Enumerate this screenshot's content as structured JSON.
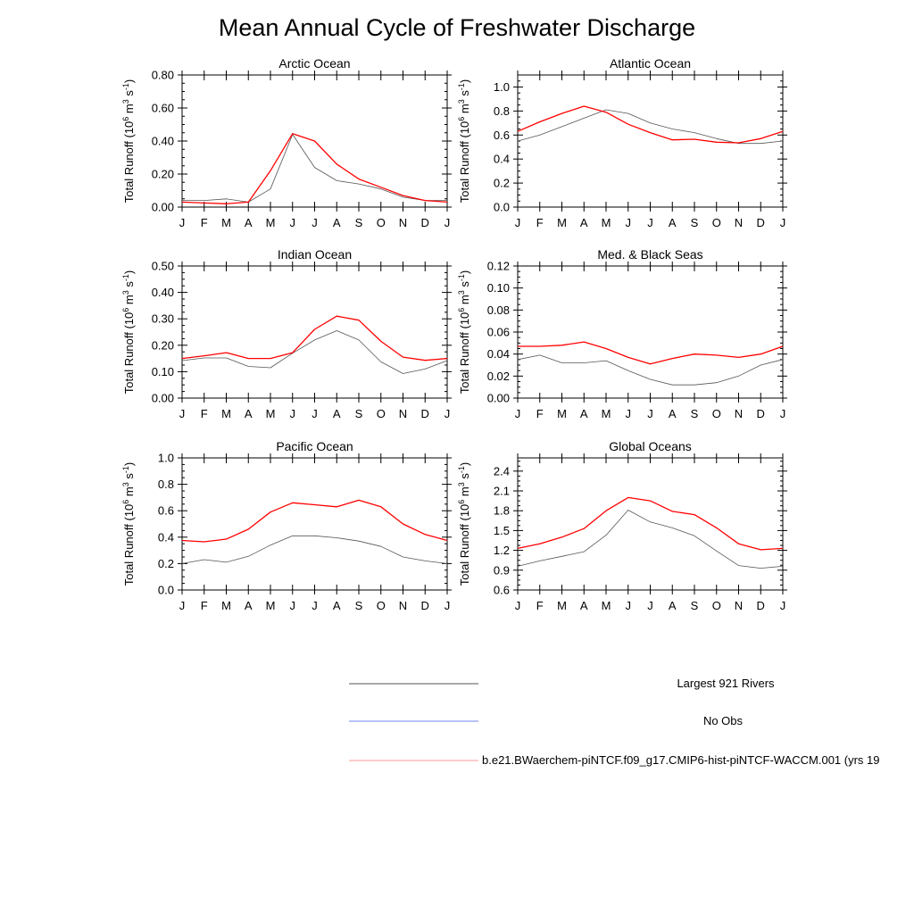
{
  "title": "Mean Annual Cycle of Freshwater Discharge",
  "colors": {
    "obs": "#555555",
    "noobs": "#6f86f0",
    "model": "#ff0000"
  },
  "legend": [
    {
      "label": "Largest 921 Rivers",
      "color": "#555555"
    },
    {
      "label": "No Obs",
      "color": "#6f86f0"
    },
    {
      "label": "b.e21.BWaerchem-piNTCF.f09_g17.CMIP6-hist-piNTCF-WACCM.001 (yrs 19",
      "color": "#ff9999"
    }
  ],
  "chart_data": [
    {
      "type": "line",
      "title": "Arctic Ocean",
      "ylabel": "Total Runoff (10^6 m^3 s^-1)",
      "ylim": [
        0,
        0.8
      ],
      "yticks": [
        0,
        0.2,
        0.4,
        0.6,
        0.8
      ],
      "ytick_labels": [
        "0.00",
        "0.20",
        "0.40",
        "0.60",
        "0.80"
      ],
      "categories": [
        "J",
        "F",
        "M",
        "A",
        "M",
        "J",
        "J",
        "A",
        "S",
        "O",
        "N",
        "D",
        "J"
      ],
      "series": [
        {
          "name": "Largest 921 Rivers",
          "values": [
            0.04,
            0.04,
            0.05,
            0.03,
            0.11,
            0.44,
            0.24,
            0.16,
            0.14,
            0.11,
            0.06,
            0.04,
            0.04
          ]
        },
        {
          "name": "b.e21.BWaerchem-piNTCF.f09_g17.CMIP6-hist-piNTCF-WACCM.001 (yrs 19",
          "values": [
            0.03,
            0.025,
            0.02,
            0.03,
            0.22,
            0.445,
            0.4,
            0.26,
            0.17,
            0.12,
            0.07,
            0.04,
            0.03
          ]
        }
      ]
    },
    {
      "type": "line",
      "title": "Atlantic Ocean",
      "ylabel": "Total Runoff (10^6 m^3 s^-1)",
      "ylim": [
        0,
        1.1
      ],
      "yticks": [
        0,
        0.2,
        0.4,
        0.6,
        0.8,
        1.0
      ],
      "ytick_labels": [
        "0.0",
        "0.2",
        "0.4",
        "0.6",
        "0.8",
        "1.0"
      ],
      "categories": [
        "J",
        "F",
        "M",
        "A",
        "M",
        "J",
        "J",
        "A",
        "S",
        "O",
        "N",
        "D",
        "J"
      ],
      "series": [
        {
          "name": "Largest 921 Rivers",
          "values": [
            0.55,
            0.6,
            0.67,
            0.74,
            0.81,
            0.78,
            0.7,
            0.65,
            0.62,
            0.57,
            0.53,
            0.53,
            0.55
          ]
        },
        {
          "name": "b.e21.BWaerchem-piNTCF.f09_g17.CMIP6-hist-piNTCF-WACCM.001 (yrs 19",
          "values": [
            0.63,
            0.71,
            0.78,
            0.84,
            0.79,
            0.69,
            0.62,
            0.56,
            0.565,
            0.54,
            0.535,
            0.57,
            0.63
          ]
        }
      ]
    },
    {
      "type": "line",
      "title": "Indian Ocean",
      "ylabel": "Total Runoff (10^6 m^3 s^-1)",
      "ylim": [
        0,
        0.5
      ],
      "yticks": [
        0,
        0.1,
        0.2,
        0.3,
        0.4,
        0.5
      ],
      "ytick_labels": [
        "0.00",
        "0.10",
        "0.20",
        "0.30",
        "0.40",
        "0.50"
      ],
      "categories": [
        "J",
        "F",
        "M",
        "A",
        "M",
        "J",
        "J",
        "A",
        "S",
        "O",
        "N",
        "D",
        "J"
      ],
      "series": [
        {
          "name": "Largest 921 Rivers",
          "values": [
            0.142,
            0.152,
            0.152,
            0.12,
            0.115,
            0.17,
            0.22,
            0.255,
            0.22,
            0.137,
            0.093,
            0.11,
            0.142
          ]
        },
        {
          "name": "b.e21.BWaerchem-piNTCF.f09_g17.CMIP6-hist-piNTCF-WACCM.001 (yrs 19",
          "values": [
            0.15,
            0.16,
            0.172,
            0.15,
            0.15,
            0.172,
            0.26,
            0.31,
            0.295,
            0.215,
            0.155,
            0.143,
            0.15
          ]
        }
      ]
    },
    {
      "type": "line",
      "title": "Med. & Black Seas",
      "ylabel": "Total Runoff (10^6 m^3 s^-1)",
      "ylim": [
        0,
        0.12
      ],
      "yticks": [
        0,
        0.02,
        0.04,
        0.06,
        0.08,
        0.1,
        0.12
      ],
      "ytick_labels": [
        "0.00",
        "0.02",
        "0.04",
        "0.06",
        "0.08",
        "0.10",
        "0.12"
      ],
      "categories": [
        "J",
        "F",
        "M",
        "A",
        "M",
        "J",
        "J",
        "A",
        "S",
        "O",
        "N",
        "D",
        "J"
      ],
      "series": [
        {
          "name": "Largest 921 Rivers",
          "values": [
            0.035,
            0.039,
            0.032,
            0.032,
            0.034,
            0.025,
            0.017,
            0.012,
            0.012,
            0.014,
            0.02,
            0.03,
            0.035
          ]
        },
        {
          "name": "b.e21.BWaerchem-piNTCF.f09_g17.CMIP6-hist-piNTCF-WACCM.001 (yrs 19",
          "values": [
            0.047,
            0.047,
            0.048,
            0.051,
            0.045,
            0.037,
            0.031,
            0.036,
            0.04,
            0.039,
            0.037,
            0.04,
            0.047
          ]
        }
      ]
    },
    {
      "type": "line",
      "title": "Pacific Ocean",
      "ylabel": "Total Runoff (10^6 m^3 s^-1)",
      "ylim": [
        0,
        1.0
      ],
      "yticks": [
        0,
        0.2,
        0.4,
        0.6,
        0.8,
        1.0
      ],
      "ytick_labels": [
        "0.0",
        "0.2",
        "0.4",
        "0.6",
        "0.8",
        "1.0"
      ],
      "categories": [
        "J",
        "F",
        "M",
        "A",
        "M",
        "J",
        "J",
        "A",
        "S",
        "O",
        "N",
        "D",
        "J"
      ],
      "series": [
        {
          "name": "Largest 921 Rivers",
          "values": [
            0.2,
            0.23,
            0.21,
            0.255,
            0.34,
            0.41,
            0.41,
            0.395,
            0.37,
            0.33,
            0.25,
            0.22,
            0.2
          ]
        },
        {
          "name": "b.e21.BWaerchem-piNTCF.f09_g17.CMIP6-hist-piNTCF-WACCM.001 (yrs 19",
          "values": [
            0.375,
            0.365,
            0.385,
            0.46,
            0.59,
            0.66,
            0.645,
            0.63,
            0.68,
            0.63,
            0.5,
            0.42,
            0.375
          ]
        }
      ]
    },
    {
      "type": "line",
      "title": "Global Oceans",
      "ylabel": "Total Runoff (10^6 m^3 s^-1)",
      "ylim": [
        0.6,
        2.6
      ],
      "yticks": [
        0.6,
        0.9,
        1.2,
        1.5,
        1.8,
        2.1,
        2.4
      ],
      "ytick_labels": [
        "0.6",
        "0.9",
        "1.2",
        "1.5",
        "1.8",
        "2.1",
        "2.4"
      ],
      "categories": [
        "J",
        "F",
        "M",
        "A",
        "M",
        "J",
        "J",
        "A",
        "S",
        "O",
        "N",
        "D",
        "J"
      ],
      "series": [
        {
          "name": "Largest 921 Rivers",
          "values": [
            0.96,
            1.04,
            1.11,
            1.18,
            1.43,
            1.81,
            1.63,
            1.54,
            1.42,
            1.19,
            0.97,
            0.93,
            0.96
          ]
        },
        {
          "name": "b.e21.BWaerchem-piNTCF.f09_g17.CMIP6-hist-piNTCF-WACCM.001 (yrs 19",
          "values": [
            1.23,
            1.3,
            1.4,
            1.53,
            1.8,
            2.0,
            1.95,
            1.79,
            1.74,
            1.54,
            1.3,
            1.21,
            1.23
          ]
        }
      ]
    }
  ]
}
